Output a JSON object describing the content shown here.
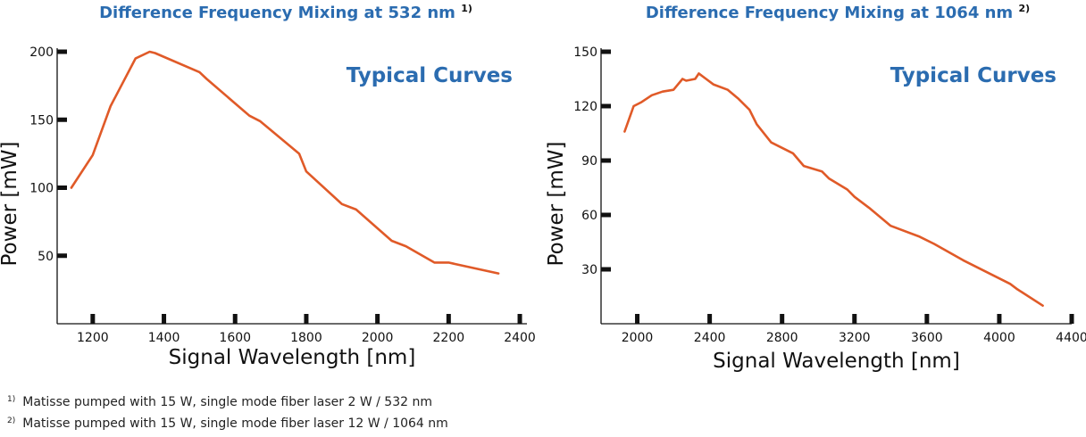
{
  "chart_data": [
    {
      "type": "line",
      "title": "Difference Frequency Mixing at 532 nm",
      "title_note": "1)",
      "annotation": "Typical Curves",
      "xlabel": "Signal Wavelength [nm]",
      "ylabel": "Power [mW]",
      "xlim": [
        1100,
        2420
      ],
      "ylim": [
        0,
        200
      ],
      "xticks": [
        1200,
        1400,
        1600,
        1800,
        2000,
        2200,
        2400
      ],
      "yticks": [
        50,
        100,
        150,
        200
      ],
      "grid": false,
      "line_color": "#e05a28",
      "series": [
        {
          "x": [
            1140,
            1200,
            1250,
            1320,
            1360,
            1375,
            1500,
            1520,
            1640,
            1670,
            1780,
            1800,
            1900,
            1940,
            2040,
            2080,
            2160,
            2200,
            2340
          ],
          "y": [
            100,
            124,
            160,
            195,
            200,
            199,
            185,
            180,
            153,
            149,
            125,
            112,
            88,
            84,
            61,
            57,
            45,
            45,
            37
          ]
        }
      ]
    },
    {
      "type": "line",
      "title": "Difference Frequency Mixing at 1064 nm",
      "title_note": "2)",
      "annotation": "Typical Curves",
      "xlabel": "Signal Wavelength [nm]",
      "ylabel": "Power [mW]",
      "xlim": [
        1800,
        4400
      ],
      "ylim": [
        0,
        150
      ],
      "xticks": [
        2000,
        2400,
        2800,
        3200,
        3600,
        4000,
        4400
      ],
      "yticks": [
        30,
        60,
        90,
        120,
        150
      ],
      "grid": false,
      "line_color": "#e05a28",
      "series": [
        {
          "x": [
            1930,
            1980,
            2020,
            2080,
            2140,
            2200,
            2250,
            2270,
            2320,
            2340,
            2380,
            2420,
            2500,
            2560,
            2620,
            2660,
            2740,
            2860,
            2920,
            3020,
            3060,
            3160,
            3200,
            3280,
            3400,
            3560,
            3640,
            3800,
            4060,
            4100,
            4240
          ],
          "y": [
            106,
            120,
            122,
            126,
            128,
            129,
            135,
            134,
            135,
            138,
            135,
            132,
            129,
            124,
            118,
            110,
            100,
            94,
            87,
            84,
            80,
            74,
            70,
            64,
            54,
            48,
            44,
            35,
            22,
            19,
            10
          ]
        }
      ]
    }
  ],
  "footnotes": [
    {
      "mark": "1)",
      "text": "Matisse pumped with 15 W, single mode fiber laser 2 W / 532 nm"
    },
    {
      "mark": "2)",
      "text": "Matisse pumped with 15 W, single mode fiber laser 12 W / 1064 nm"
    }
  ]
}
